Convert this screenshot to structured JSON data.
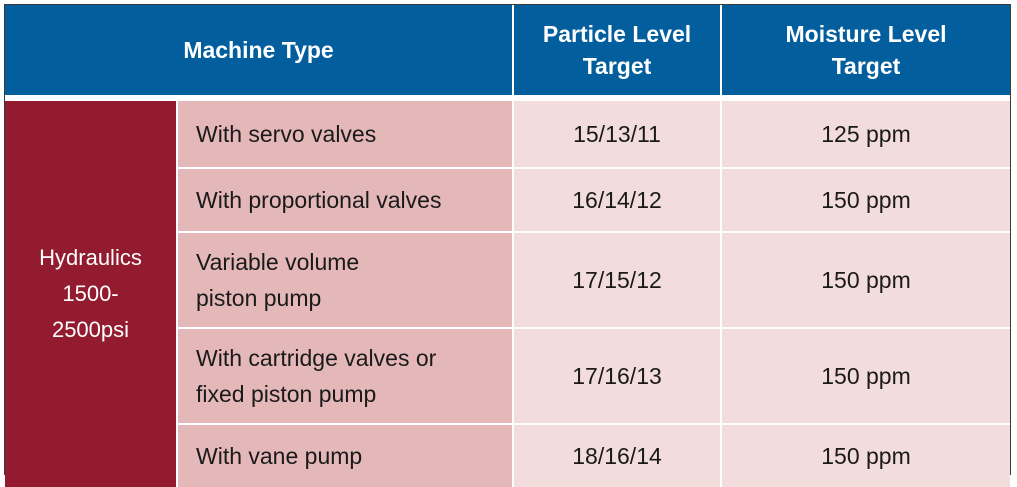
{
  "header": {
    "machine_type": "Machine Type",
    "particle_target": [
      "Particle Level",
      "Target"
    ],
    "moisture_target": [
      "Moisture Level",
      "Target"
    ]
  },
  "group": {
    "label": [
      "Hydraulics",
      "1500-",
      "2500psi"
    ]
  },
  "rows": [
    {
      "machine": [
        "With servo valves"
      ],
      "particle": "15/13/11",
      "moisture": "125 ppm"
    },
    {
      "machine": [
        "With proportional valves"
      ],
      "particle": "16/14/12",
      "moisture": "150 ppm"
    },
    {
      "machine": [
        "Variable volume",
        "piston pump"
      ],
      "particle": "17/15/12",
      "moisture": "150 ppm"
    },
    {
      "machine": [
        "With cartridge valves or",
        "fixed piston pump"
      ],
      "particle": "17/16/13",
      "moisture": "150 ppm"
    },
    {
      "machine": [
        "With vane pump"
      ],
      "particle": "18/16/14",
      "moisture": "150 ppm"
    }
  ],
  "colors": {
    "header_bg": "#035e9e",
    "group_bg": "#931b2f",
    "machine_bg": "#e4b7b8",
    "value_bg": "#f2dcdc"
  }
}
